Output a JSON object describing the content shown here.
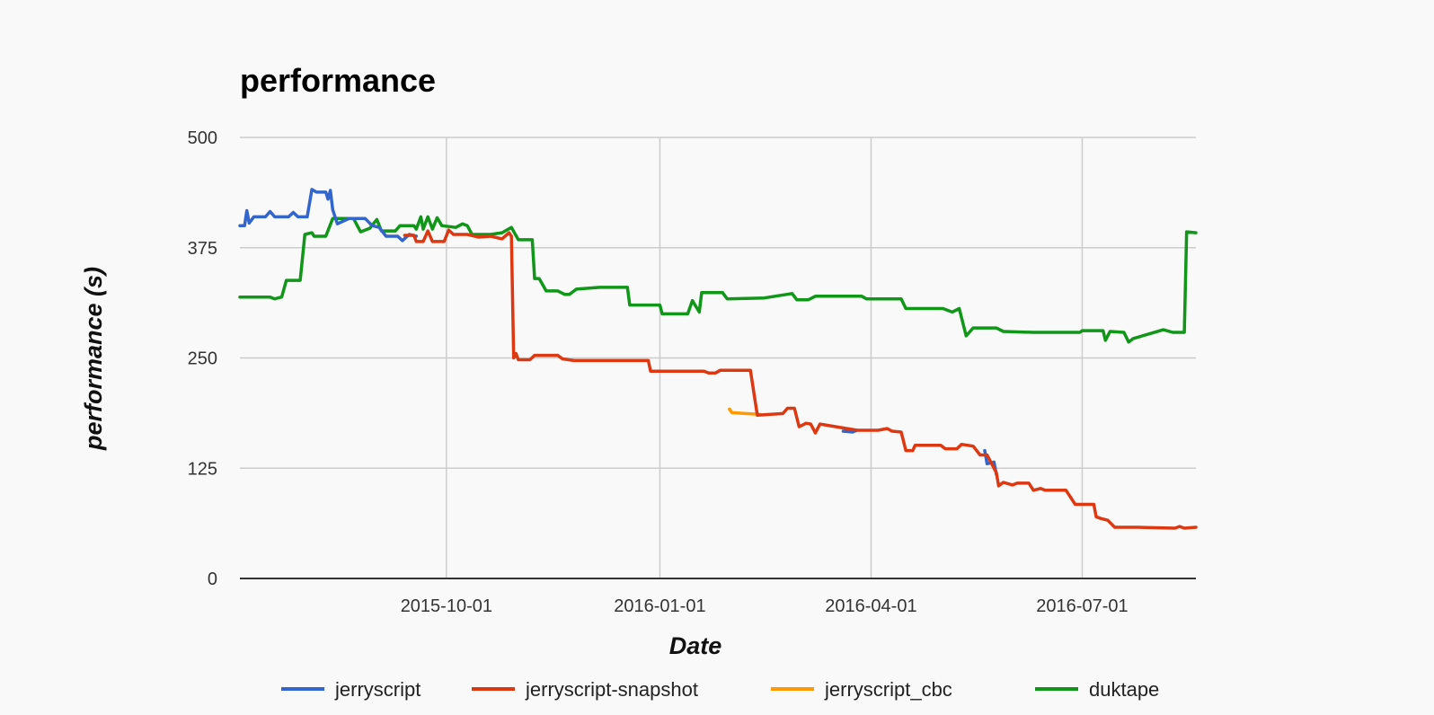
{
  "chart_data": {
    "type": "line",
    "title": "performance",
    "xlabel": "Date",
    "ylabel": "performance (s)",
    "x_type": "date",
    "xlim": [
      "2015-07-04",
      "2016-08-19"
    ],
    "ylim": [
      0,
      500
    ],
    "yticks": [
      0,
      125,
      250,
      375,
      500
    ],
    "xticks": [
      "2015-10-01",
      "2016-01-01",
      "2016-04-01",
      "2016-07-01"
    ],
    "grid": true,
    "legend_position": "bottom",
    "series": [
      {
        "name": "jerryscript",
        "color": "#3366cc",
        "points": [
          [
            "2015-07-04",
            400
          ],
          [
            "2015-07-06",
            400
          ],
          [
            "2015-07-07",
            417
          ],
          [
            "2015-07-08",
            403
          ],
          [
            "2015-07-10",
            410
          ],
          [
            "2015-07-15",
            410
          ],
          [
            "2015-07-17",
            416
          ],
          [
            "2015-07-19",
            410
          ],
          [
            "2015-07-25",
            410
          ],
          [
            "2015-07-27",
            415
          ],
          [
            "2015-07-29",
            410
          ],
          [
            "2015-08-02",
            410
          ],
          [
            "2015-08-04",
            441
          ],
          [
            "2015-08-06",
            438
          ],
          [
            "2015-08-10",
            438
          ],
          [
            "2015-08-11",
            430
          ],
          [
            "2015-08-12",
            440
          ],
          [
            "2015-08-13",
            418
          ],
          [
            "2015-08-15",
            402
          ],
          [
            "2015-08-20",
            408
          ],
          [
            "2015-08-27",
            408
          ],
          [
            "2015-08-30",
            400
          ],
          [
            "2015-09-02",
            398
          ],
          [
            "2015-09-05",
            388
          ],
          [
            "2015-09-10",
            388
          ],
          [
            "2015-09-12",
            383
          ],
          [
            "2015-09-15",
            390
          ],
          [
            "2015-09-18",
            388
          ]
        ]
      },
      {
        "name": "jerryscript",
        "color": "#3366cc",
        "points": [
          [
            "2016-03-20",
            167
          ],
          [
            "2016-03-24",
            166
          ],
          [
            "2016-03-26",
            168
          ]
        ]
      },
      {
        "name": "jerryscript",
        "color": "#3366cc",
        "points": [
          [
            "2016-05-20",
            145
          ],
          [
            "2016-05-21",
            130
          ],
          [
            "2016-05-24",
            132
          ],
          [
            "2016-05-25",
            118
          ]
        ]
      },
      {
        "name": "jerryscript-snapshot",
        "color": "#dc3912",
        "points": [
          [
            "2015-09-13",
            389
          ],
          [
            "2015-09-17",
            389
          ],
          [
            "2015-09-18",
            382
          ],
          [
            "2015-09-21",
            382
          ],
          [
            "2015-09-23",
            394
          ],
          [
            "2015-09-25",
            382
          ],
          [
            "2015-09-30",
            382
          ],
          [
            "2015-10-02",
            395
          ],
          [
            "2015-10-04",
            390
          ],
          [
            "2015-10-10",
            390
          ],
          [
            "2015-10-15",
            387
          ],
          [
            "2015-10-20",
            388
          ],
          [
            "2015-10-25",
            385
          ],
          [
            "2015-10-28",
            392
          ],
          [
            "2015-10-29",
            388
          ],
          [
            "2015-10-30",
            250
          ],
          [
            "2015-10-31",
            255
          ],
          [
            "2015-11-01",
            248
          ],
          [
            "2015-11-06",
            248
          ],
          [
            "2015-11-08",
            253
          ],
          [
            "2015-11-18",
            253
          ],
          [
            "2015-11-20",
            249
          ],
          [
            "2015-11-25",
            247
          ],
          [
            "2015-12-10",
            247
          ],
          [
            "2015-12-27",
            247
          ],
          [
            "2015-12-28",
            235
          ],
          [
            "2016-01-20",
            235
          ],
          [
            "2016-01-22",
            233
          ],
          [
            "2016-01-25",
            233
          ],
          [
            "2016-01-27",
            236
          ],
          [
            "2016-02-09",
            236
          ],
          [
            "2016-02-12",
            185
          ],
          [
            "2016-02-23",
            187
          ],
          [
            "2016-02-25",
            193
          ],
          [
            "2016-02-28",
            193
          ],
          [
            "2016-03-01",
            172
          ],
          [
            "2016-03-04",
            176
          ],
          [
            "2016-03-06",
            175
          ],
          [
            "2016-03-08",
            165
          ],
          [
            "2016-03-10",
            175
          ],
          [
            "2016-03-26",
            168
          ],
          [
            "2016-04-04",
            168
          ],
          [
            "2016-04-08",
            170
          ],
          [
            "2016-04-10",
            167
          ],
          [
            "2016-04-14",
            166
          ],
          [
            "2016-04-16",
            145
          ],
          [
            "2016-04-19",
            145
          ],
          [
            "2016-04-20",
            151
          ],
          [
            "2016-05-01",
            151
          ],
          [
            "2016-05-03",
            147
          ],
          [
            "2016-05-08",
            147
          ],
          [
            "2016-05-10",
            152
          ],
          [
            "2016-05-15",
            150
          ],
          [
            "2016-05-18",
            140
          ],
          [
            "2016-05-21",
            140
          ],
          [
            "2016-05-25",
            120
          ],
          [
            "2016-05-26",
            105
          ],
          [
            "2016-05-28",
            109
          ],
          [
            "2016-06-01",
            106
          ],
          [
            "2016-06-03",
            108
          ],
          [
            "2016-06-08",
            108
          ],
          [
            "2016-06-10",
            100
          ],
          [
            "2016-06-13",
            102
          ],
          [
            "2016-06-15",
            100
          ],
          [
            "2016-06-24",
            100
          ],
          [
            "2016-06-28",
            84
          ],
          [
            "2016-07-06",
            84
          ],
          [
            "2016-07-07",
            70
          ],
          [
            "2016-07-09",
            68
          ],
          [
            "2016-07-12",
            66
          ],
          [
            "2016-07-15",
            58
          ],
          [
            "2016-07-25",
            58
          ],
          [
            "2016-08-10",
            57
          ],
          [
            "2016-08-12",
            59
          ],
          [
            "2016-08-14",
            57
          ],
          [
            "2016-08-19",
            58
          ]
        ]
      },
      {
        "name": "jerryscript_cbc",
        "color": "#ff9900",
        "points": [
          [
            "2016-01-31",
            192
          ],
          [
            "2016-02-01",
            188
          ],
          [
            "2016-02-07",
            187
          ],
          [
            "2016-02-13",
            186
          ]
        ]
      },
      {
        "name": "duktape",
        "color": "#109618",
        "points": [
          [
            "2015-07-04",
            319
          ],
          [
            "2015-07-17",
            319
          ],
          [
            "2015-07-19",
            317
          ],
          [
            "2015-07-22",
            319
          ],
          [
            "2015-07-24",
            338
          ],
          [
            "2015-07-30",
            338
          ],
          [
            "2015-08-01",
            390
          ],
          [
            "2015-08-04",
            392
          ],
          [
            "2015-08-05",
            388
          ],
          [
            "2015-08-10",
            388
          ],
          [
            "2015-08-13",
            408
          ],
          [
            "2015-08-22",
            408
          ],
          [
            "2015-08-25",
            393
          ],
          [
            "2015-08-29",
            397
          ],
          [
            "2015-09-01",
            407
          ],
          [
            "2015-09-03",
            394
          ],
          [
            "2015-09-09",
            394
          ],
          [
            "2015-09-11",
            400
          ],
          [
            "2015-09-17",
            400
          ],
          [
            "2015-09-18",
            396
          ],
          [
            "2015-09-20",
            410
          ],
          [
            "2015-09-21",
            396
          ],
          [
            "2015-09-23",
            410
          ],
          [
            "2015-09-25",
            396
          ],
          [
            "2015-09-27",
            409
          ],
          [
            "2015-09-29",
            400
          ],
          [
            "2015-10-05",
            398
          ],
          [
            "2015-10-08",
            402
          ],
          [
            "2015-10-10",
            400
          ],
          [
            "2015-10-12",
            390
          ],
          [
            "2015-10-20",
            390
          ],
          [
            "2015-10-25",
            392
          ],
          [
            "2015-10-27",
            395
          ],
          [
            "2015-10-29",
            398
          ],
          [
            "2015-11-01",
            384
          ],
          [
            "2015-11-07",
            384
          ],
          [
            "2015-11-08",
            340
          ],
          [
            "2015-11-10",
            340
          ],
          [
            "2015-11-13",
            326
          ],
          [
            "2015-11-18",
            326
          ],
          [
            "2015-11-21",
            322
          ],
          [
            "2015-11-23",
            322
          ],
          [
            "2015-11-26",
            328
          ],
          [
            "2015-12-01",
            329
          ],
          [
            "2015-12-06",
            330
          ],
          [
            "2015-12-18",
            330
          ],
          [
            "2015-12-19",
            310
          ],
          [
            "2016-01-01",
            310
          ],
          [
            "2016-01-02",
            300
          ],
          [
            "2016-01-13",
            300
          ],
          [
            "2016-01-15",
            315
          ],
          [
            "2016-01-18",
            302
          ],
          [
            "2016-01-19",
            324
          ],
          [
            "2016-01-28",
            324
          ],
          [
            "2016-01-30",
            317
          ],
          [
            "2016-02-15",
            318
          ],
          [
            "2016-02-27",
            323
          ],
          [
            "2016-02-29",
            316
          ],
          [
            "2016-03-05",
            316
          ],
          [
            "2016-03-08",
            320
          ],
          [
            "2016-03-28",
            320
          ],
          [
            "2016-03-30",
            317
          ],
          [
            "2016-04-01",
            317
          ],
          [
            "2016-04-14",
            317
          ],
          [
            "2016-04-16",
            306
          ],
          [
            "2016-05-02",
            306
          ],
          [
            "2016-05-06",
            302
          ],
          [
            "2016-05-09",
            306
          ],
          [
            "2016-05-12",
            275
          ],
          [
            "2016-05-15",
            284
          ],
          [
            "2016-05-25",
            284
          ],
          [
            "2016-05-28",
            280
          ],
          [
            "2016-06-10",
            279
          ],
          [
            "2016-06-30",
            279
          ],
          [
            "2016-07-01",
            281
          ],
          [
            "2016-07-10",
            281
          ],
          [
            "2016-07-11",
            270
          ],
          [
            "2016-07-13",
            280
          ],
          [
            "2016-07-19",
            279
          ],
          [
            "2016-07-21",
            268
          ],
          [
            "2016-07-23",
            272
          ],
          [
            "2016-08-05",
            282
          ],
          [
            "2016-08-09",
            279
          ],
          [
            "2016-08-14",
            279
          ],
          [
            "2016-08-15",
            393
          ],
          [
            "2016-08-19",
            392
          ]
        ]
      }
    ],
    "legend": [
      {
        "label": "jerryscript",
        "color": "#3366cc"
      },
      {
        "label": "jerryscript-snapshot",
        "color": "#dc3912"
      },
      {
        "label": "jerryscript_cbc",
        "color": "#ff9900"
      },
      {
        "label": "duktape",
        "color": "#109618"
      }
    ]
  }
}
